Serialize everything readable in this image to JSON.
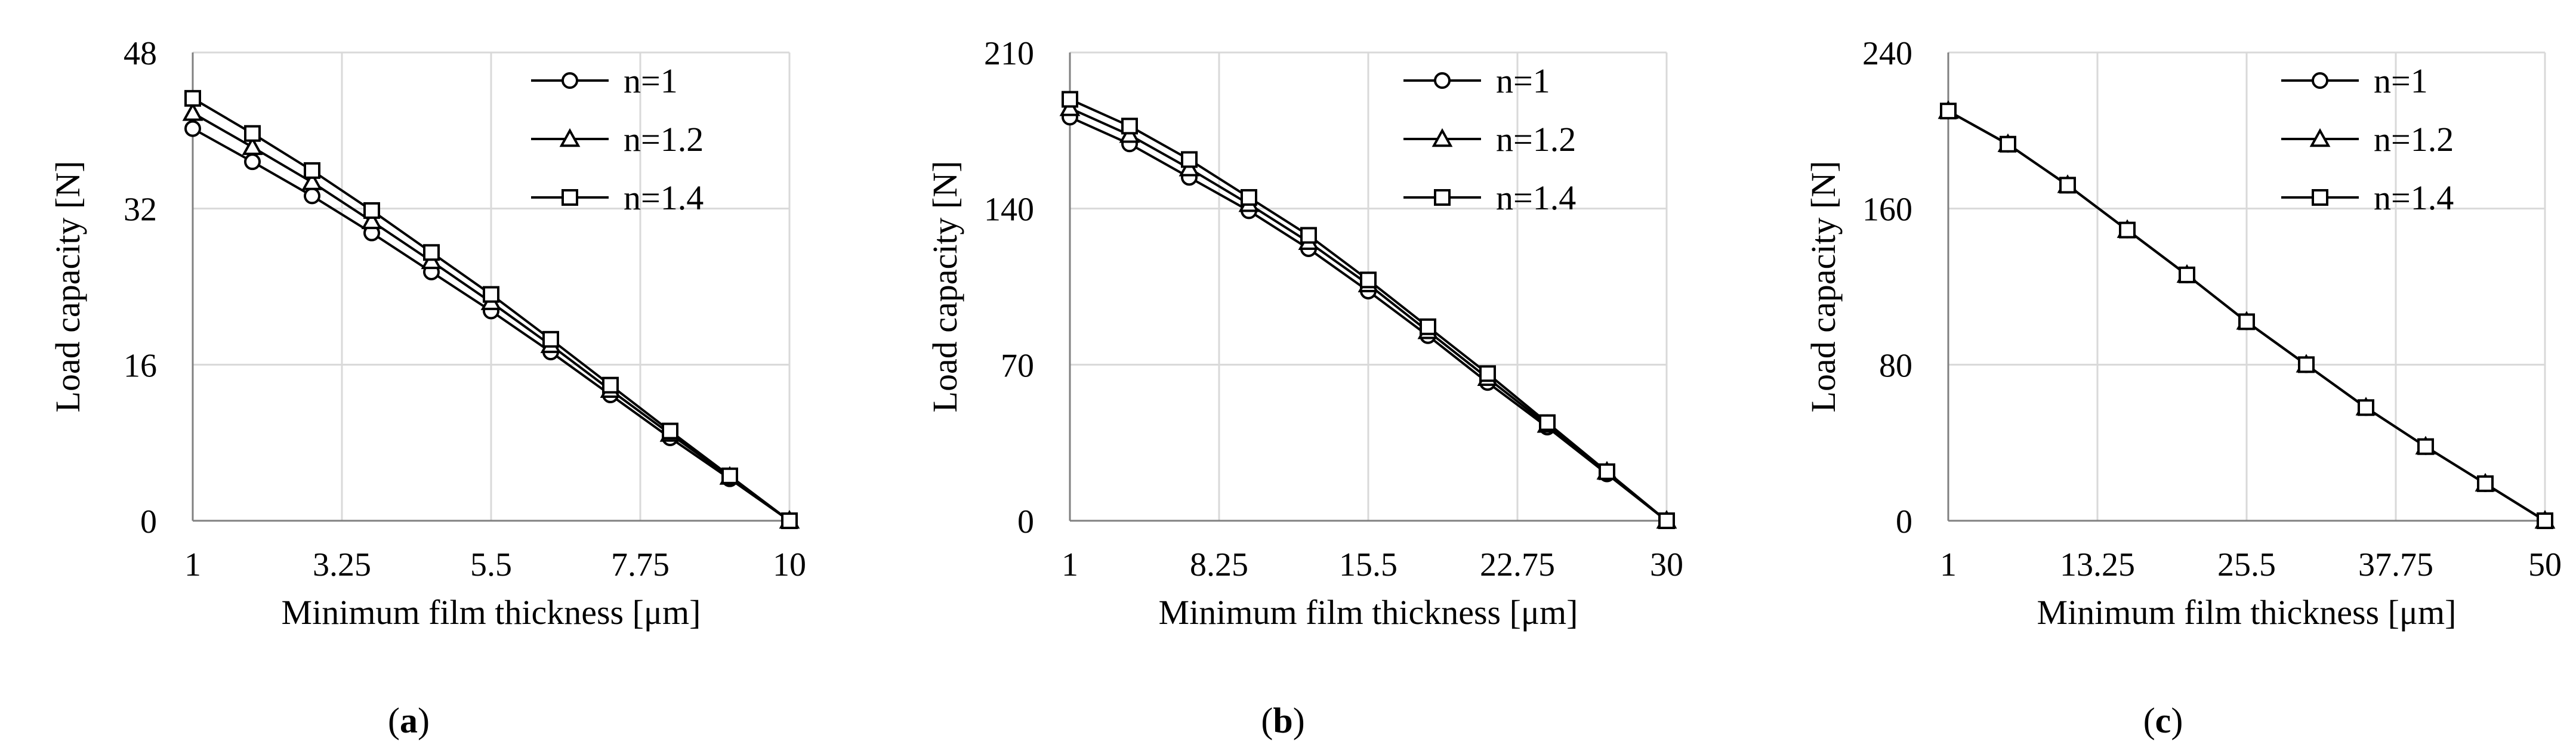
{
  "chart_data": [
    {
      "type": "line",
      "panel_label": "(a)",
      "panel_letter": "a",
      "xlabel": "Minimum film thickness [μm]",
      "ylabel": "Load capacity [N]",
      "xlim": [
        1,
        10
      ],
      "ylim": [
        0,
        48
      ],
      "xticks": [
        "1",
        "3.25",
        "5.5",
        "7.75",
        "10"
      ],
      "yticks": [
        "0",
        "16",
        "32",
        "48"
      ],
      "grid": true,
      "legend_position": "top-right",
      "x": [
        1,
        1.9,
        2.8,
        3.7,
        4.6,
        5.5,
        6.4,
        7.3,
        8.2,
        9.1,
        10
      ],
      "series": [
        {
          "name": "n=1",
          "marker": "circle",
          "values": [
            40.2,
            36.8,
            33.3,
            29.5,
            25.5,
            21.5,
            17.3,
            12.9,
            8.5,
            4.3,
            0
          ]
        },
        {
          "name": "n=1.2",
          "marker": "triangle",
          "values": [
            41.8,
            38.3,
            34.7,
            30.7,
            26.6,
            22.4,
            18.0,
            13.4,
            8.9,
            4.5,
            0
          ]
        },
        {
          "name": "n=1.4",
          "marker": "square",
          "values": [
            43.3,
            39.7,
            35.9,
            31.8,
            27.5,
            23.2,
            18.6,
            13.9,
            9.2,
            4.6,
            0
          ]
        }
      ]
    },
    {
      "type": "line",
      "panel_label": "(b)",
      "panel_letter": "b",
      "xlabel": "Minimum film thickness [μm]",
      "ylabel": "Load capacity [N]",
      "xlim": [
        1,
        30
      ],
      "ylim": [
        0,
        210
      ],
      "xticks": [
        "1",
        "8.25",
        "15.5",
        "22.75",
        "30"
      ],
      "yticks": [
        "0",
        "70",
        "140",
        "210"
      ],
      "grid": true,
      "legend_position": "top-right",
      "x": [
        1,
        3.9,
        6.8,
        9.7,
        12.6,
        15.5,
        18.4,
        21.3,
        24.2,
        27.1,
        30
      ],
      "series": [
        {
          "name": "n=1",
          "marker": "circle",
          "values": [
            181,
            169,
            154,
            139,
            122,
            103,
            83,
            62,
            42,
            21,
            0
          ]
        },
        {
          "name": "n=1.2",
          "marker": "triangle",
          "values": [
            185,
            173,
            158,
            142,
            125,
            106,
            85,
            64,
            43,
            22,
            0
          ]
        },
        {
          "name": "n=1.4",
          "marker": "square",
          "values": [
            189,
            177,
            162,
            145,
            128,
            108,
            87,
            66,
            44,
            22,
            0
          ]
        }
      ]
    },
    {
      "type": "line",
      "panel_label": "(c)",
      "panel_letter": "c",
      "xlabel": "Minimum film thickness [μm]",
      "ylabel": "Load capacity [N]",
      "xlim": [
        1,
        50
      ],
      "ylim": [
        0,
        240
      ],
      "xticks": [
        "1",
        "13.25",
        "25.5",
        "37.75",
        "50"
      ],
      "yticks": [
        "0",
        "80",
        "160",
        "240"
      ],
      "grid": true,
      "legend_position": "top-right",
      "x": [
        1,
        5.9,
        10.8,
        15.7,
        20.6,
        25.5,
        30.4,
        35.3,
        40.2,
        45.1,
        50
      ],
      "series": [
        {
          "name": "n=1",
          "marker": "circle",
          "values": [
            210,
            193,
            172,
            149,
            126,
            102,
            80,
            58,
            38,
            19,
            0
          ]
        },
        {
          "name": "n=1.2",
          "marker": "triangle",
          "values": [
            210,
            193,
            172,
            149,
            126,
            102,
            80,
            58,
            38,
            19,
            0
          ]
        },
        {
          "name": "n=1.4",
          "marker": "square",
          "values": [
            210,
            193,
            172,
            149,
            126,
            102,
            80,
            58,
            38,
            19,
            0
          ]
        }
      ]
    }
  ]
}
